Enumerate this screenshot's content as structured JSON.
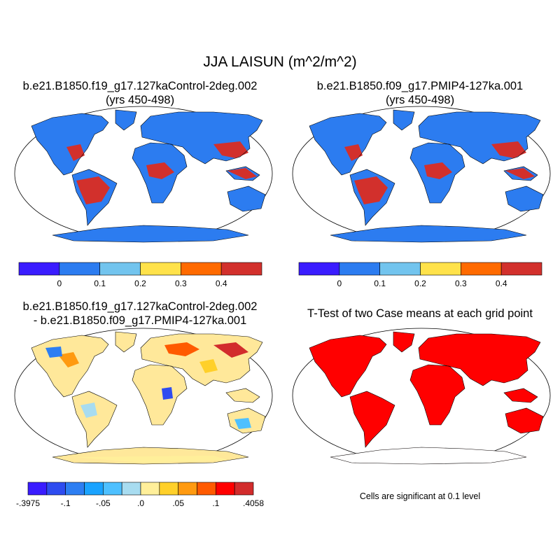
{
  "title": "JJA LAISUN (m^2/m^2)",
  "panels": [
    {
      "id": "case1",
      "title_line1": "b.e21.B1850.f19_g17.127kaControl-2deg.002",
      "title_line2": "(yrs 450-498)",
      "fill_mode": "field"
    },
    {
      "id": "case2",
      "title_line1": "b.e21.B1850.f09_g17.PMIP4-127ka.001",
      "title_line2": "(yrs 450-498)",
      "fill_mode": "field"
    },
    {
      "id": "diff",
      "title_line1": "b.e21.B1850.f19_g17.127kaControl-2deg.002",
      "title_line2": "- b.e21.B1850.f09_g17.PMIP4-127ka.001",
      "fill_mode": "difference"
    },
    {
      "id": "ttest",
      "title_line1": "T-Test of two Case means at each grid point",
      "fill_mode": "significance",
      "note": "Cells are significant at 0.1 level"
    }
  ],
  "colorbars": {
    "field": {
      "colors": [
        "#3a1cff",
        "#2c7cf0",
        "#72c4ee",
        "#ffe24a",
        "#ff6a00",
        "#d2302c"
      ],
      "labels": [
        "0",
        "0.1",
        "0.2",
        "0.3",
        "0.4"
      ]
    },
    "difference": {
      "colors": [
        "#3a1cff",
        "#2e4cf0",
        "#2d7ef2",
        "#1aa3ff",
        "#4ec0ff",
        "#a8dcf0",
        "#ffef9a",
        "#ffd02a",
        "#ff9a10",
        "#ff5a00",
        "#ff0000",
        "#d22c2c"
      ],
      "labels": [
        "-.3975",
        "-.1",
        "-.05",
        ".0",
        ".05",
        ".1",
        ".4058"
      ]
    }
  },
  "colors": {
    "significant": "#ff0000",
    "coastline": "#000000"
  }
}
